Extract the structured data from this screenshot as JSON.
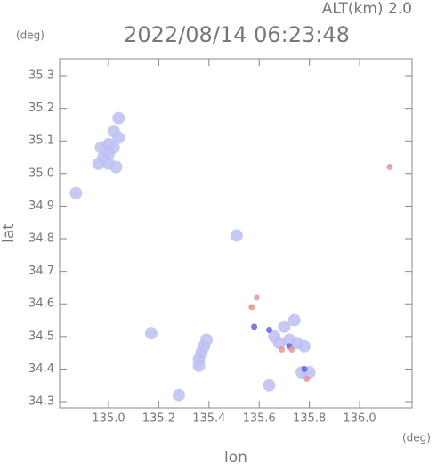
{
  "chart_data": {
    "type": "scatter",
    "altitude_label": "ALT(km) 2.0",
    "title": "2022/08/14 06:23:48",
    "y_unit": "(deg)",
    "x_unit": "(deg)",
    "xlabel": "lon",
    "ylabel": "lat",
    "xlim": [
      134.805,
      136.209
    ],
    "ylim": [
      34.281,
      35.352
    ],
    "xticks": [
      {
        "value": 135.0,
        "label": "135.0"
      },
      135.2,
      135.4,
      135.6,
      135.8,
      {
        "value": 136.0,
        "label": "136.0"
      }
    ],
    "yticks": [
      34.3,
      34.4,
      34.5,
      34.6,
      34.7,
      34.8,
      34.9,
      {
        "value": 35.0,
        "label": "35.0"
      },
      35.1,
      35.2,
      35.3
    ],
    "series": [
      {
        "color": "#bcc0f2",
        "x": [
          134.98,
          135.0,
          135.02,
          135.0,
          134.97,
          135.04,
          135.02,
          135.0,
          134.96,
          135.03,
          135.04,
          134.87,
          135.17,
          135.28,
          135.37,
          135.36,
          135.38,
          135.39,
          135.36,
          135.51,
          135.68,
          135.72,
          135.75,
          135.78,
          135.7,
          135.74,
          135.66,
          135.64,
          135.8,
          135.77
        ],
        "y": [
          35.05,
          35.03,
          35.08,
          35.09,
          35.08,
          35.11,
          35.13,
          35.06,
          35.03,
          35.02,
          35.17,
          34.94,
          34.51,
          34.32,
          34.45,
          34.41,
          34.47,
          34.49,
          34.43,
          34.81,
          34.48,
          34.49,
          34.48,
          34.47,
          34.53,
          34.55,
          34.5,
          34.35,
          34.39,
          34.39
        ]
      },
      {
        "color": "#6464e0",
        "x": [
          135.58,
          135.64,
          135.78,
          135.72
        ],
        "y": [
          34.53,
          34.52,
          34.4,
          34.47
        ]
      },
      {
        "color": "#e89494",
        "x": [
          136.12,
          135.57,
          135.69,
          135.73,
          135.79,
          135.59
        ],
        "y": [
          35.02,
          34.59,
          34.46,
          34.46,
          34.37,
          34.62
        ]
      }
    ]
  }
}
